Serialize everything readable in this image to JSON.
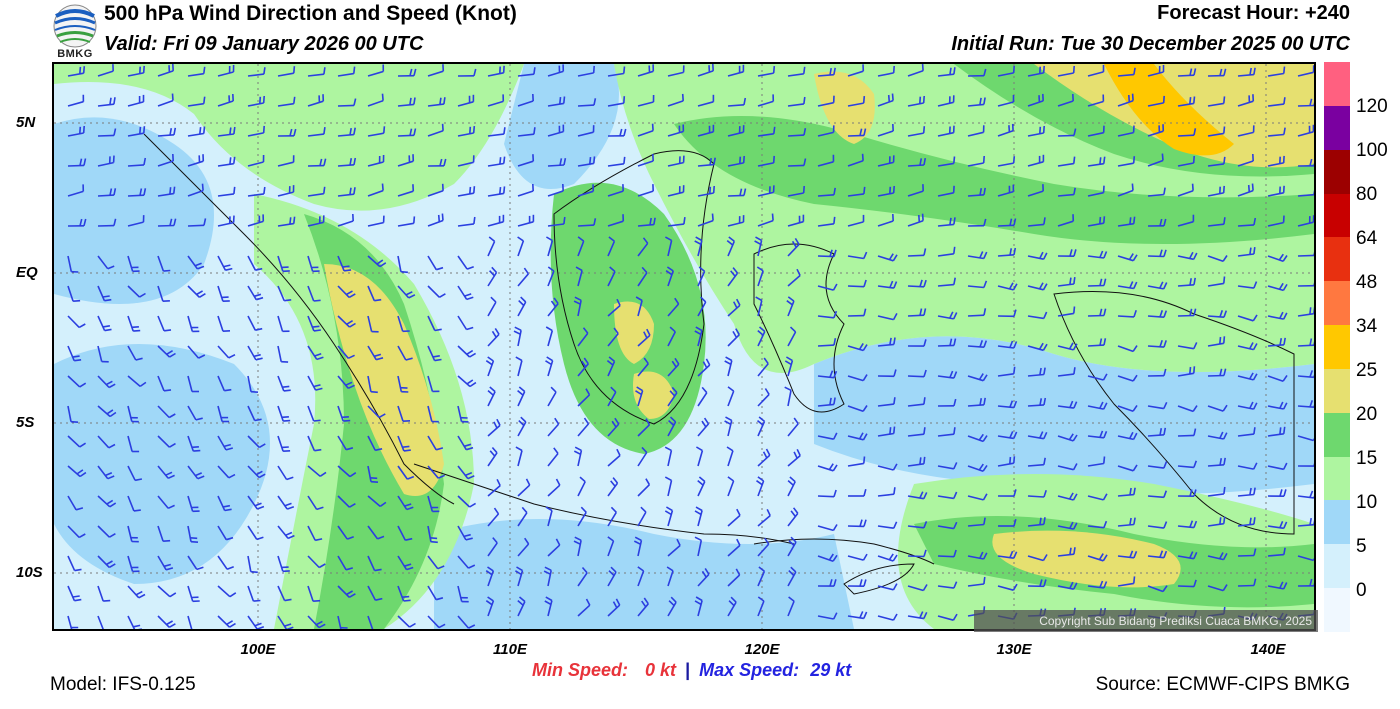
{
  "header": {
    "title": "500 hPa Wind Direction and Speed (Knot)",
    "valid": "Valid: Fri 09 January 2026 00 UTC",
    "forecast_hour": "Forecast Hour: +240",
    "initial_run": "Initial Run: Tue 30 December 2025 00 UTC"
  },
  "logo": {
    "text": "BMKG",
    "icon": "bmkg-logo-icon"
  },
  "map": {
    "lat_labels": [
      "5N",
      "EQ",
      "5S",
      "10S"
    ],
    "lon_labels": [
      "100E",
      "110E",
      "120E",
      "130E",
      "140E"
    ],
    "copyright": "Copyright Sub Bidang Prediksi Cuaca BMKG, 2025"
  },
  "colorbar": {
    "labels": [
      "120",
      "100",
      "80",
      "64",
      "48",
      "34",
      "25",
      "20",
      "15",
      "10",
      "5",
      "0"
    ],
    "colors": [
      "#ff6080",
      "#7a00a0",
      "#9c0000",
      "#c80000",
      "#e83010",
      "#ff7840",
      "#ffc800",
      "#e6e070",
      "#6ed86e",
      "#aef5a0",
      "#a0d8f8",
      "#d4f0fc",
      "#f0f8ff"
    ]
  },
  "footer": {
    "model": "Model: IFS-0.125",
    "source": "Source: ECMWF-CIPS BMKG",
    "min_label": "Min Speed:",
    "min_value": "0 kt",
    "separator": "|",
    "max_label": "Max Speed:",
    "max_value": "29 kt"
  }
}
